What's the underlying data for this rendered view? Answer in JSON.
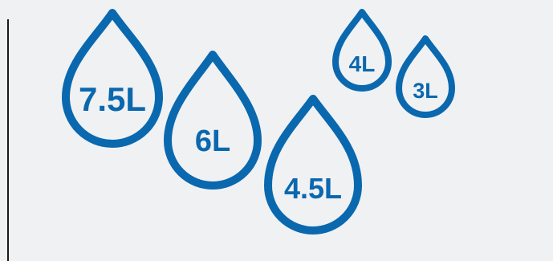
{
  "theme": {
    "background": "#f0f1f3",
    "drop_color": "#0a68ae",
    "rule_color": "#1a1a1a"
  },
  "drops": [
    {
      "label": "7.5L",
      "icon": "water-drop-icon"
    },
    {
      "label": "6L",
      "icon": "water-drop-icon"
    },
    {
      "label": "4.5L",
      "icon": "water-drop-icon"
    },
    {
      "label": "4L",
      "icon": "water-drop-icon"
    },
    {
      "label": "3L",
      "icon": "water-drop-icon"
    }
  ]
}
